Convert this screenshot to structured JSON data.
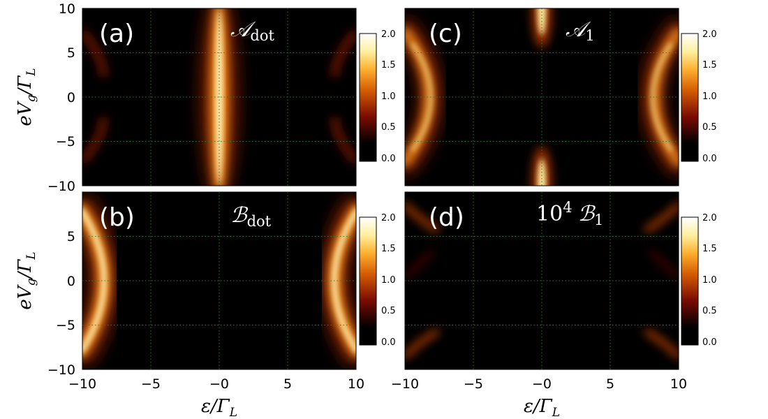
{
  "figure": {
    "colormap": "afmhot",
    "colors": {
      "background": "#000000",
      "grid": "#2e7d32",
      "axis": "#000000",
      "label": "#ffffff"
    },
    "xlabel": {
      "main": "ε/Γ",
      "sub": "L"
    },
    "ylabel": {
      "main": "eV",
      "sub1": "g",
      "mid": "/Γ",
      "sub2": "L"
    },
    "panel_labels": [
      "(a)",
      "(b)",
      "(c)",
      "(d)"
    ],
    "panel_titles": [
      {
        "main": "𝒜",
        "sub": "dot"
      },
      {
        "main": "ℬ",
        "sub": "dot"
      },
      {
        "main": "𝒜",
        "sub": "1"
      },
      {
        "prefix": "10",
        "sup": "4",
        "main": "ℬ",
        "sub": "1"
      }
    ]
  },
  "chart_data": [
    {
      "type": "heatmap",
      "panel": "(a)",
      "title": "A_dot",
      "xlim": [
        -10,
        10
      ],
      "ylim": [
        -10,
        10
      ],
      "x_ticks": [
        "−10",
        "−5",
        "−0",
        "5",
        "10"
      ],
      "y_ticks": [
        "10",
        "5",
        "0",
        "−5",
        "−10"
      ],
      "colorbar": {
        "range": [
          -0.4,
          2.4
        ],
        "ticks": [
          "2.0",
          "1.5",
          "1.0",
          "0.5",
          "0.0"
        ]
      },
      "grid": true,
      "features": [
        "bright vertical ridge at ε=0",
        "faint arcs near ε=±10"
      ]
    },
    {
      "type": "heatmap",
      "panel": "(b)",
      "title": "B_dot",
      "xlim": [
        -10,
        10
      ],
      "ylim": [
        -10,
        10
      ],
      "x_ticks": [
        "−10",
        "−5",
        "−0",
        "5",
        "10"
      ],
      "y_ticks": [
        "5",
        "0",
        "−5",
        "−10"
      ],
      "colorbar": {
        "range": [
          -0.4,
          2.4
        ],
        "ticks": [
          "2.0",
          "1.5",
          "1.0",
          "0.5",
          "0.0"
        ]
      },
      "grid": true,
      "features": [
        "bright arcs near ε=±8 at eV_g=0"
      ]
    },
    {
      "type": "heatmap",
      "panel": "(c)",
      "title": "A_1",
      "xlim": [
        -10,
        10
      ],
      "ylim": [
        -10,
        10
      ],
      "x_ticks": [
        "−10",
        "−5",
        "−0",
        "5",
        "10"
      ],
      "y_ticks": [],
      "colorbar": {
        "range": [
          -0.4,
          2.4
        ],
        "ticks": [
          "2.0",
          "1.5",
          "1.0",
          "0.5",
          "0.0"
        ]
      },
      "grid": true,
      "features": [
        "arcs near ε=±8",
        "bright spots at ε=0 near eV_g=±10"
      ]
    },
    {
      "type": "heatmap",
      "panel": "(d)",
      "title": "10^4 B_1",
      "xlim": [
        -10,
        10
      ],
      "ylim": [
        -10,
        10
      ],
      "x_ticks": [
        "−10",
        "−5",
        "−0",
        "5",
        "10"
      ],
      "y_ticks": [],
      "colorbar": {
        "range": [
          -0.4,
          2.4
        ],
        "ticks": [
          "2.0",
          "1.5",
          "1.0",
          "0.5",
          "0.0"
        ]
      },
      "grid": true,
      "features": [
        "faint diagonal streaks at the corners"
      ]
    }
  ]
}
